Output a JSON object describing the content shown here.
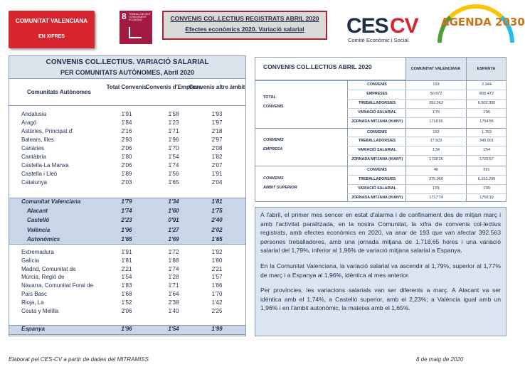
{
  "header": {
    "badge": {
      "title": "COMUNITAT VALENCIANA",
      "subtitle": "EN XIFRES"
    },
    "sdg": {
      "number": "8",
      "label": "TREBALL DECENT I CREIXEMENT ECONÒMIC"
    },
    "title": {
      "line1": "CONVENIS COL.LECTIUS REGISTRATS ABRIL 2020",
      "line2": "Efectes econòmics 2020. Variació salarial"
    },
    "logo": {
      "parts": [
        "CES",
        "CV"
      ],
      "tagline": "Comitè Econòmic i Social"
    },
    "agenda": "AGENDA 2030"
  },
  "left_table": {
    "title": "CONVENIS COL.LECTIUS. VARIACIÓ SALARIAL",
    "subtitle": "PER COMUNITATS AUTÒNOMES, Abril 2020",
    "columns": [
      "Comunitats Autònomes",
      "Total Convenis",
      "Convenis d'Empresa",
      "Convenis altre àmbit"
    ],
    "groups": [
      [
        [
          "Andalusia",
          "1'91",
          "1'58",
          "1'93"
        ],
        [
          "Aragó",
          "1'84",
          "1'23",
          "1'97"
        ],
        [
          "Astúries, Principat d'",
          "2'16",
          "1'71",
          "2'18"
        ],
        [
          "Balears, Illes",
          "2'93",
          "1'96",
          "2'97"
        ],
        [
          "Canàries",
          "2'06",
          "1'70",
          "2'08"
        ],
        [
          "Cantàbria",
          "1'80",
          "1'54",
          "1'82"
        ],
        [
          "Castella-La Manxa",
          "2'06",
          "1'74",
          "2'07"
        ],
        [
          "Castella i Lleó",
          "1'89",
          "1'56",
          "1'91"
        ],
        [
          "Catalunya",
          "2'03",
          "1'65",
          "2'04"
        ]
      ],
      [
        [
          "Comunitat Valenciana",
          "1'79",
          "1'34",
          "1'81"
        ],
        [
          "Alacant",
          "1'74",
          "1'60",
          "1'75"
        ],
        [
          "Castelló",
          "2'23",
          "0'91",
          "2'40"
        ],
        [
          "València",
          "1'96",
          "1'27",
          "2'02"
        ],
        [
          "Autonòmics",
          "1'65",
          "1'69",
          "1'65"
        ]
      ],
      [
        [
          "Extremadura",
          "1'91",
          "1'72",
          "1'92"
        ],
        [
          "Galícia",
          "1'81",
          "1'88",
          "1'80"
        ],
        [
          "Madrid, Comunitat de",
          "2'21",
          "1'74",
          "2'21"
        ],
        [
          "Múrcia, Regió de",
          "1'54",
          "1'28",
          "1'57"
        ],
        [
          "Navarra, Comunitat Foral de",
          "1'83",
          "1'71",
          "1'86"
        ],
        [
          "País Basc",
          "1'68",
          "1'64",
          "1'70"
        ],
        [
          "Rioja, La",
          "1'52",
          "2'38",
          "1'42"
        ],
        [
          "Ceuta y Melilla",
          "2'06",
          "1'40",
          "2'25"
        ]
      ],
      [
        [
          "Espanya",
          "1'96",
          "1'54",
          "1'99"
        ]
      ]
    ]
  },
  "right_table": {
    "title": "CONVENIS COL.LECTIUS ABRIL 2020",
    "columns": [
      "COMUNITAT VALENCIANA",
      "ESPANYA"
    ],
    "sections": [
      {
        "label": [
          "TOTAL",
          "CONVENIS"
        ],
        "rows": [
          [
            "CONVENIS",
            "193",
            "2.344"
          ],
          [
            "EMPRESES",
            "50.872",
            "808.472"
          ],
          [
            "TREBALLADORS/ES",
            "392.563",
            "6.502.300"
          ],
          [
            "VARIACIÓ SALARIAL",
            "1'79",
            "1'96"
          ],
          [
            "JORNADA MITJANA (H/ANY)",
            "1718'65",
            "1754'55"
          ]
        ]
      },
      {
        "label": [
          "CONVENIS",
          "EMPRESA"
        ],
        "rows": [
          [
            "CONVENIS",
            "153",
            "1.753"
          ],
          [
            "TREBALLADORS/ES",
            "17.503",
            "349.001"
          ],
          [
            "VARIACIÓ SALARIAL",
            "1'34",
            "1'54"
          ],
          [
            "JORNADA MITJANA (H/ANY)",
            "1738'26",
            "1725'67"
          ]
        ]
      },
      {
        "label": [
          "CONVENIS",
          "ÀMBIT SUPERIOR"
        ],
        "rows": [
          [
            "CONVENIS",
            "40",
            "591"
          ],
          [
            "TREBALLADORS/ES",
            "375.060",
            "6.153.299"
          ],
          [
            "VARIACIÓ SALARIAL",
            "1'81",
            "1'99"
          ],
          [
            "JORNADA MITJANA (H/ANY)",
            "1717'74",
            "1756'19"
          ]
        ]
      }
    ]
  },
  "text": [
    "A l'abril, el primer mes sencer en estat d'alarma i de confinament des de mitjan març i amb l'activitat paralitzada, en la nostra Comunitat, la xifra de convenis col·lectius registrats, amb efectes econòmics en 2020, va anar de 193 que van afectar 392.563 persones treballadores, amb una jornada mitjana de 1.718,65 hores i una variació salarial del 1,79%, inferior al 1,96% de variació mitjana salarial a Espanya.",
    "En la Comunitat Valenciana, la variació salarial va ascendir al 1,79%, superior al 1,77% de març i a Espanya al 1,96%, idèntica al mes anterior.",
    "Per províncies, les variacions salarials van ser diferents a març. A Alacant va ser idèntica amb el 1,74%, a Castelló superior, amb el 2,23%; a València igual amb un 1,96% i en l'àmbit autonòmic, la mateixa amb el 1,65%."
  ],
  "footer": {
    "source": "Elaborat pel CES-CV a partir de dades del MITRAMISS",
    "date": "8 de maig de 2020"
  }
}
